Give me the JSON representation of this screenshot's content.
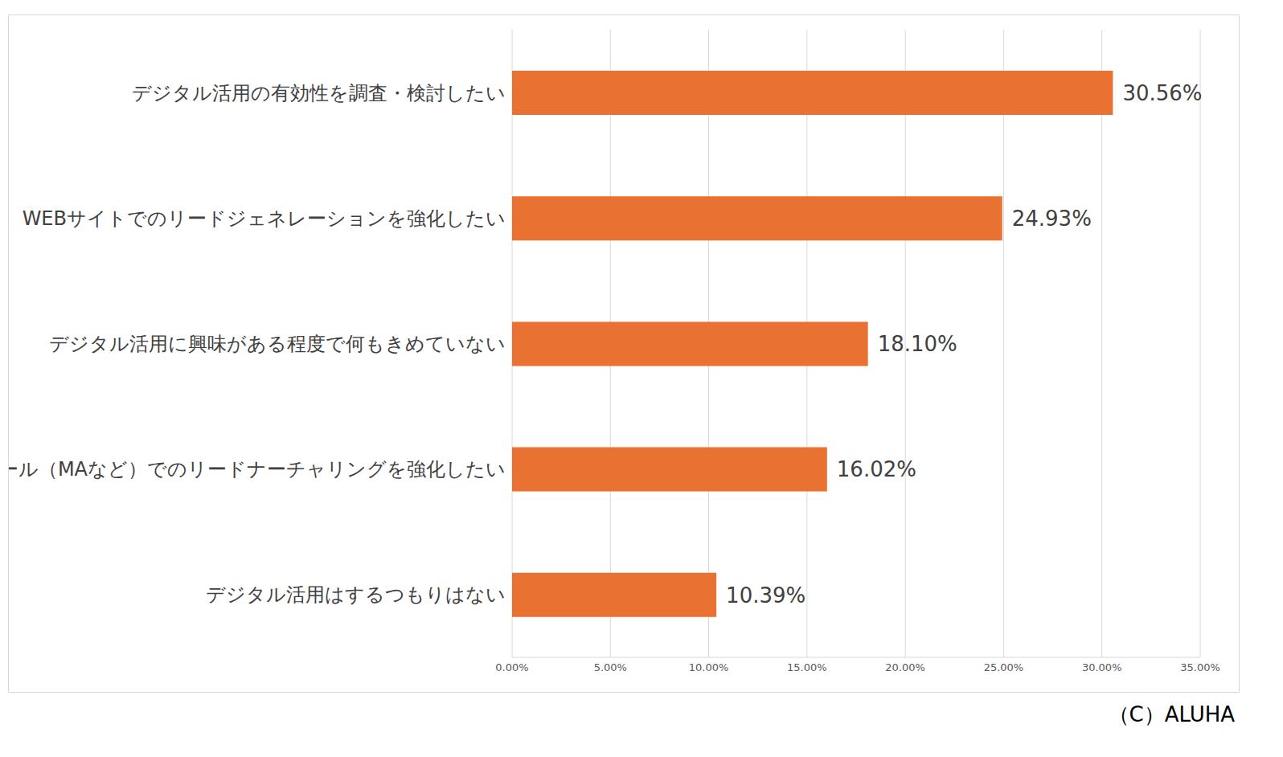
{
  "chart_data": {
    "type": "bar",
    "orientation": "horizontal",
    "categories": [
      "デジタル活用の有効性を調査・検討したい",
      "WEBサイトでのリードジェネレーションを強化したい",
      "デジタル活用に興味がある程度で何もきめていない",
      "メール（MAなど）でのリードナーチャリングを強化したい",
      "デジタル活用はするつもりはない"
    ],
    "values": [
      30.56,
      24.93,
      18.1,
      16.02,
      10.39
    ],
    "value_labels": [
      "30.56%",
      "24.93%",
      "18.10%",
      "16.02%",
      "10.39%"
    ],
    "color": "#e97132",
    "xlim": [
      0,
      35
    ],
    "xticks": [
      {
        "value": 0,
        "label": "0.00%"
      },
      {
        "value": 5,
        "label": "5.00%"
      },
      {
        "value": 10,
        "label": "10.00%"
      },
      {
        "value": 15,
        "label": "15.00%"
      },
      {
        "value": 20,
        "label": "20.00%"
      },
      {
        "value": 25,
        "label": "25.00%"
      },
      {
        "value": 30,
        "label": "30.00%"
      },
      {
        "value": 35,
        "label": "35.00%"
      }
    ],
    "grid": true,
    "data_labels": true,
    "annotations": [
      "（C）ALUHA"
    ]
  }
}
